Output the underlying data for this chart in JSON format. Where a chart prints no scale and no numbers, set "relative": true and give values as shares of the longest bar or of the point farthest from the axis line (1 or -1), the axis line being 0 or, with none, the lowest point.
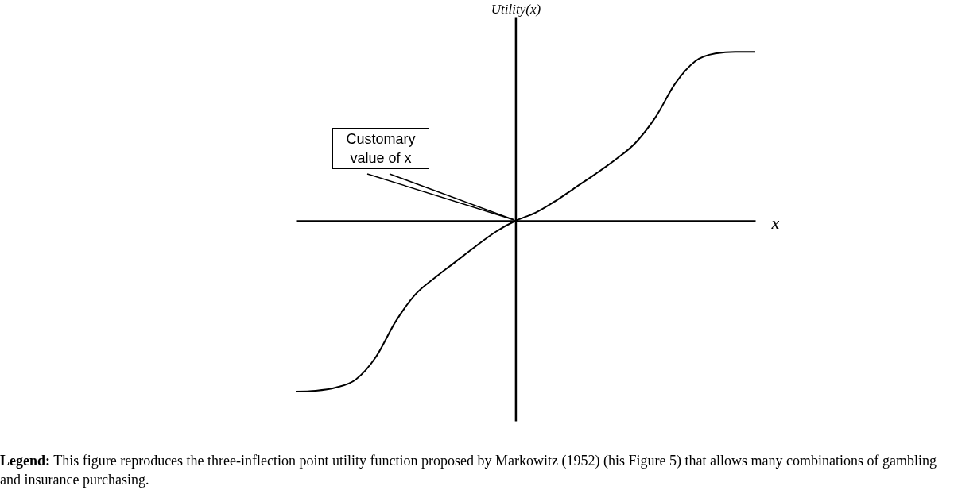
{
  "chart_data": {
    "type": "line",
    "relative": true,
    "tick_labels": false,
    "ylabel": "Utility(x)",
    "xlabel": "x",
    "color": "#000000",
    "categories": [
      null,
      null,
      null,
      null,
      null,
      null,
      null,
      null,
      null,
      null,
      null,
      null,
      null,
      null,
      null,
      null,
      null,
      null,
      null,
      null,
      null,
      null,
      null,
      null
    ],
    "values": [
      -1.0,
      -0.995,
      -0.977,
      -0.93,
      -0.8,
      -0.59,
      -0.43,
      -0.33,
      -0.24,
      -0.15,
      -0.065,
      0,
      0.047,
      0.116,
      0.195,
      0.274,
      0.358,
      0.456,
      0.605,
      0.805,
      0.935,
      0.98,
      0.99,
      0.99
    ],
    "annotations": [
      "Customary value of x",
      "Legend: This figure reproduces the three-inflection point utility function proposed by Markowitz (1952) (his Figure 5) that allows many combinations of gambling and insurance purchasing."
    ]
  }
}
